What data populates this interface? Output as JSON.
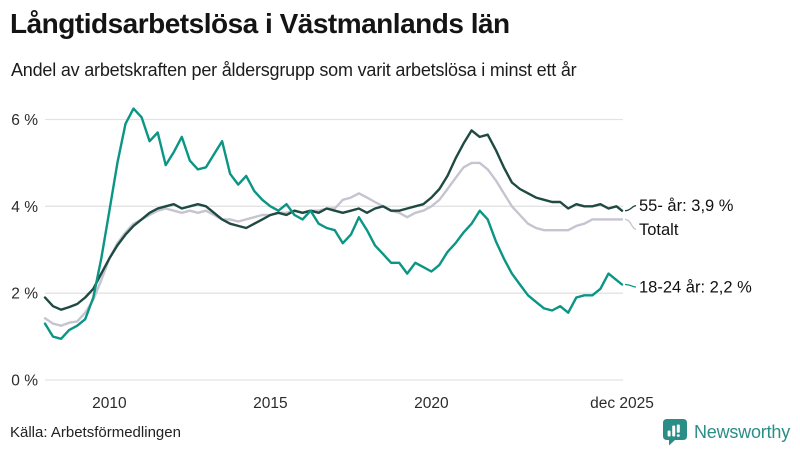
{
  "header": {
    "title": "Långtidsarbetslösa i Västmanlands län",
    "subtitle": "Andel av arbetskraften per åldersgrupp som varit arbetslösa i minst ett år"
  },
  "footer": {
    "source": "Källa: Arbetsförmedlingen",
    "brand": "Newsworthy"
  },
  "colors": {
    "age_55_plus": "#1f4a42",
    "total": "#c6c4d0",
    "age_18_24": "#0a9584",
    "grid": "#e3e3e3",
    "tick_text": "#2b2b2b",
    "annotation_text": "#111111",
    "brand_teal": "#2b8e86"
  },
  "chart_data": {
    "type": "line",
    "title": "Långtidsarbetslösa i Västmanlands län",
    "subtitle": "Andel av arbetskraften per åldersgrupp som varit arbetslösa i minst ett år",
    "xlabel": "",
    "ylabel": "",
    "grid": "horizontal",
    "legend_position": "right-annotations",
    "xlim": [
      2008,
      2025.92
    ],
    "ylim": [
      0,
      6
    ],
    "y_ticks": [
      {
        "value": 0,
        "label": "0 %"
      },
      {
        "value": 2,
        "label": "2 %"
      },
      {
        "value": 4,
        "label": "4 %"
      },
      {
        "value": 6,
        "label": "6 %"
      }
    ],
    "x_ticks": [
      {
        "value": 2010,
        "label": "2010"
      },
      {
        "value": 2015,
        "label": "2015"
      },
      {
        "value": 2020,
        "label": "2020"
      },
      {
        "value": 2025.92,
        "label": "dec 2025"
      }
    ],
    "x": [
      2008,
      2008.25,
      2008.5,
      2008.75,
      2009,
      2009.25,
      2009.5,
      2009.75,
      2010,
      2010.25,
      2010.5,
      2010.75,
      2011,
      2011.25,
      2011.5,
      2011.75,
      2012,
      2012.25,
      2012.5,
      2012.75,
      2013,
      2013.25,
      2013.5,
      2013.75,
      2014,
      2014.25,
      2014.5,
      2014.75,
      2015,
      2015.25,
      2015.5,
      2015.75,
      2016,
      2016.25,
      2016.5,
      2016.75,
      2017,
      2017.25,
      2017.5,
      2017.75,
      2018,
      2018.25,
      2018.5,
      2018.75,
      2019,
      2019.25,
      2019.5,
      2019.75,
      2020,
      2020.25,
      2020.5,
      2020.75,
      2021,
      2021.25,
      2021.5,
      2021.75,
      2022,
      2022.25,
      2022.5,
      2022.75,
      2023,
      2023.25,
      2023.5,
      2023.75,
      2024,
      2024.25,
      2024.5,
      2024.75,
      2025,
      2025.25,
      2025.5,
      2025.75,
      2025.92
    ],
    "series": [
      {
        "id": "age-total",
        "name": "Totalt",
        "label": "Totalt",
        "end_value": 3.7,
        "color": "#c6c4d0",
        "label_dy": 10,
        "values": [
          1.42,
          1.3,
          1.25,
          1.32,
          1.35,
          1.55,
          1.85,
          2.3,
          2.8,
          3.15,
          3.4,
          3.6,
          3.7,
          3.8,
          3.9,
          3.95,
          3.9,
          3.85,
          3.9,
          3.85,
          3.9,
          3.8,
          3.7,
          3.7,
          3.65,
          3.7,
          3.75,
          3.8,
          3.8,
          3.85,
          3.85,
          3.9,
          3.85,
          3.9,
          3.9,
          3.95,
          3.95,
          4.15,
          4.2,
          4.3,
          4.2,
          4.1,
          4.0,
          3.9,
          3.85,
          3.75,
          3.85,
          3.9,
          4.0,
          4.15,
          4.4,
          4.65,
          4.9,
          5.0,
          5.0,
          4.85,
          4.6,
          4.3,
          4.0,
          3.8,
          3.6,
          3.5,
          3.45,
          3.45,
          3.45,
          3.45,
          3.55,
          3.6,
          3.7,
          3.7,
          3.7,
          3.7,
          3.7
        ]
      },
      {
        "id": "age-55-plus",
        "name": "55- år",
        "label": "55- år: 3,9 %",
        "end_value": 3.9,
        "color": "#1f4a42",
        "label_dy": -5,
        "values": [
          1.9,
          1.7,
          1.62,
          1.68,
          1.75,
          1.9,
          2.1,
          2.45,
          2.8,
          3.1,
          3.35,
          3.55,
          3.7,
          3.85,
          3.95,
          4.0,
          4.05,
          3.95,
          4.0,
          4.05,
          4.0,
          3.85,
          3.7,
          3.6,
          3.55,
          3.5,
          3.6,
          3.7,
          3.8,
          3.85,
          3.8,
          3.9,
          3.85,
          3.9,
          3.85,
          3.95,
          3.9,
          3.85,
          3.9,
          3.95,
          3.85,
          3.95,
          4.0,
          3.9,
          3.9,
          3.95,
          4.0,
          4.05,
          4.2,
          4.4,
          4.7,
          5.1,
          5.45,
          5.75,
          5.6,
          5.65,
          5.3,
          4.9,
          4.55,
          4.4,
          4.3,
          4.2,
          4.15,
          4.1,
          4.1,
          3.95,
          4.05,
          4.0,
          4.0,
          4.05,
          3.95,
          4.0,
          3.9
        ]
      },
      {
        "id": "age-18-24",
        "name": "18-24 år",
        "label": "18-24 år: 2,2 %",
        "end_value": 2.2,
        "color": "#0a9584",
        "label_dy": 2.5,
        "values": [
          1.3,
          1.0,
          0.95,
          1.15,
          1.25,
          1.4,
          1.9,
          2.8,
          3.9,
          5.0,
          5.9,
          6.25,
          6.05,
          5.5,
          5.7,
          4.95,
          5.25,
          5.6,
          5.05,
          4.85,
          4.9,
          5.2,
          5.5,
          4.75,
          4.5,
          4.7,
          4.35,
          4.15,
          4.0,
          3.9,
          4.05,
          3.8,
          3.7,
          3.9,
          3.6,
          3.5,
          3.45,
          3.15,
          3.35,
          3.75,
          3.45,
          3.1,
          2.9,
          2.7,
          2.7,
          2.45,
          2.7,
          2.6,
          2.5,
          2.65,
          2.95,
          3.15,
          3.4,
          3.6,
          3.9,
          3.7,
          3.2,
          2.8,
          2.45,
          2.2,
          1.95,
          1.8,
          1.65,
          1.6,
          1.7,
          1.55,
          1.9,
          1.95,
          1.95,
          2.1,
          2.45,
          2.3,
          2.2
        ]
      }
    ]
  }
}
